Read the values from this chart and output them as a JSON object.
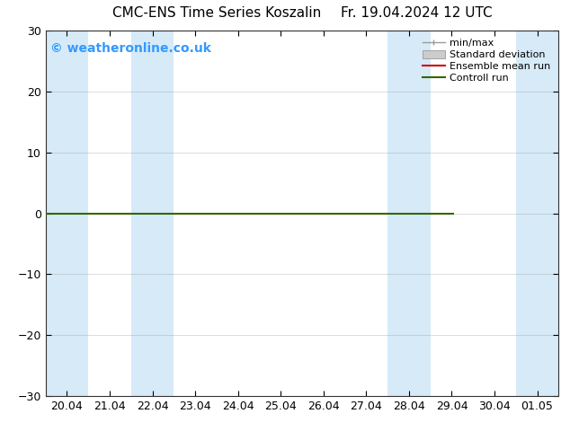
{
  "title_left": "CMC-ENS Time Series Koszalin",
  "title_right": "Fr. 19.04.2024 12 UTC",
  "title_fontsize": 11,
  "watermark": "© weatheronline.co.uk",
  "watermark_color": "#3399ff",
  "watermark_fontsize": 10,
  "ylim": [
    -30,
    30
  ],
  "yticks": [
    -30,
    -20,
    -10,
    0,
    10,
    20,
    30
  ],
  "xtick_labels": [
    "20.04",
    "21.04",
    "22.04",
    "23.04",
    "24.04",
    "25.04",
    "26.04",
    "27.04",
    "28.04",
    "29.04",
    "30.04",
    "01.05"
  ],
  "xmin": 0,
  "xmax": 11,
  "background_color": "#ffffff",
  "plot_bg_color": "#ffffff",
  "shaded_bands": [
    {
      "xstart": -0.5,
      "xend": 0.5
    },
    {
      "xstart": 1.5,
      "xend": 2.5
    },
    {
      "xstart": 7.5,
      "xend": 8.5
    },
    {
      "xstart": 10.5,
      "xend": 11.5
    }
  ],
  "shaded_color": "#d6eaf8",
  "shaded_alpha": 1.0,
  "control_run_x_end": 9.05,
  "control_run_y": 0,
  "control_run_color": "#336600",
  "control_run_lw": 1.5,
  "ensemble_mean_color": "#cc0000",
  "ensemble_mean_lw": 1.5,
  "minmax_color": "#999999",
  "std_dev_color": "#cccccc",
  "legend_fontsize": 8,
  "tick_labelsize": 9,
  "grid_color": "#888888",
  "grid_alpha": 0.4,
  "fig_width": 6.34,
  "fig_height": 4.9,
  "dpi": 100
}
